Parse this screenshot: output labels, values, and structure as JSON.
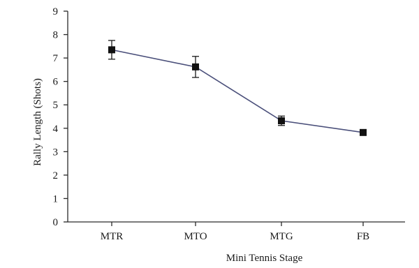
{
  "chart_data": {
    "type": "line",
    "title": "",
    "xlabel": "Mini Tennis Stage",
    "ylabel": "Rally Length (Shots)",
    "categories": [
      "MTR",
      "MTO",
      "MTG",
      "FB"
    ],
    "series": [
      {
        "values": [
          7.35,
          6.62,
          4.32,
          3.82
        ],
        "error": [
          0.4,
          0.45,
          0.2,
          0.12
        ]
      }
    ],
    "ylim": [
      0,
      9
    ],
    "yticks": [
      0,
      1,
      2,
      3,
      4,
      5,
      6,
      7,
      8,
      9
    ],
    "grid": false,
    "legend": "none",
    "line_color": "#4a4f7a",
    "marker_color": "#111111"
  }
}
